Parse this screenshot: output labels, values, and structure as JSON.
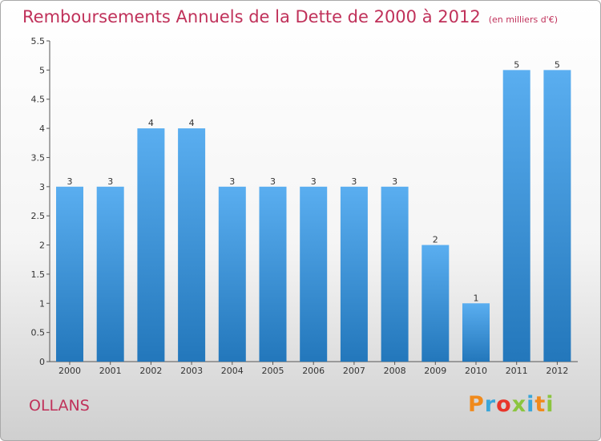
{
  "header": {
    "title": "Remboursements Annuels de la Dette de 2000 à 2012",
    "unit": "(en milliers d'€)"
  },
  "footer": {
    "commune": "OLLANS",
    "logo_text": "Proxiti",
    "logo_colors": [
      "#f08a1c",
      "#3aa6d9",
      "#e8352a",
      "#8bc53f",
      "#3aa6d9",
      "#f08a1c",
      "#8bc53f"
    ]
  },
  "colors": {
    "title": "#c0315a",
    "bar_top": "#5aaef0",
    "bar_bottom": "#2377bb",
    "axis": "#333333"
  },
  "chart_data": {
    "type": "bar",
    "title": "Remboursements Annuels de la Dette de 2000 à 2012",
    "categories": [
      "2000",
      "2001",
      "2002",
      "2003",
      "2004",
      "2005",
      "2006",
      "2007",
      "2008",
      "2009",
      "2010",
      "2011",
      "2012"
    ],
    "values": [
      3,
      3,
      4,
      4,
      3,
      3,
      3,
      3,
      3,
      2,
      1,
      5,
      5
    ],
    "ylim": [
      0,
      5.5
    ],
    "yticks": [
      "0",
      "0.5",
      "1",
      "1.5",
      "2",
      "2.5",
      "3",
      "3.5",
      "4",
      "4.5",
      "5",
      "5.5"
    ],
    "grid": false,
    "legend": "none"
  }
}
